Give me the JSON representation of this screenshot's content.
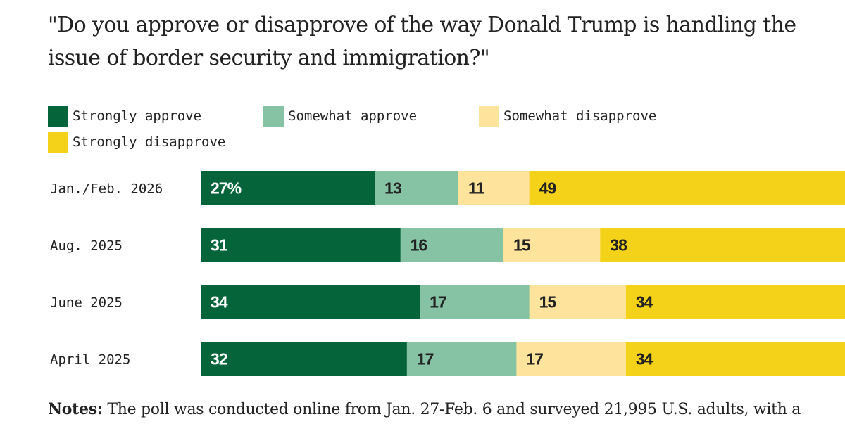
{
  "question": "\"Do you approve or disapprove of the way Donald Trump is handling the issue of border security and immigration?\"",
  "legend": [
    {
      "label": "Strongly approve",
      "color": "#05643a"
    },
    {
      "label": "Somewhat approve",
      "color": "#85c3a4"
    },
    {
      "label": "Somewhat disapprove",
      "color": "#fde39b"
    },
    {
      "label": "Strongly disapprove",
      "color": "#f5d21a"
    }
  ],
  "chart_data": {
    "type": "bar",
    "orientation": "horizontal",
    "stacked": true,
    "categories": [
      "Jan./Feb. 2026",
      "Aug. 2025",
      "June 2025",
      "April 2025"
    ],
    "series": [
      {
        "name": "Strongly approve",
        "values": [
          27,
          31,
          34,
          32
        ],
        "labels": [
          "27%",
          "31",
          "34",
          "32"
        ],
        "color": "#05643a",
        "label_color": "#ffffff"
      },
      {
        "name": "Somewhat approve",
        "values": [
          13,
          16,
          17,
          17
        ],
        "labels": [
          "13",
          "16",
          "17",
          "17"
        ],
        "color": "#85c3a4",
        "label_color": "#222222"
      },
      {
        "name": "Somewhat disapprove",
        "values": [
          11,
          15,
          15,
          17
        ],
        "labels": [
          "11",
          "15",
          "15",
          "17"
        ],
        "color": "#fde39b",
        "label_color": "#222222"
      },
      {
        "name": "Strongly disapprove",
        "values": [
          49,
          38,
          34,
          34
        ],
        "labels": [
          "49",
          "38",
          "34",
          "34"
        ],
        "color": "#f5d21a",
        "label_color": "#222222"
      }
    ],
    "units": "%",
    "xlim": [
      0,
      100
    ]
  },
  "notes": {
    "label": "Notes:",
    "text": "The poll was conducted online from Jan. 27-Feb. 6 and surveyed 21,995 U.S. adults, with a"
  }
}
